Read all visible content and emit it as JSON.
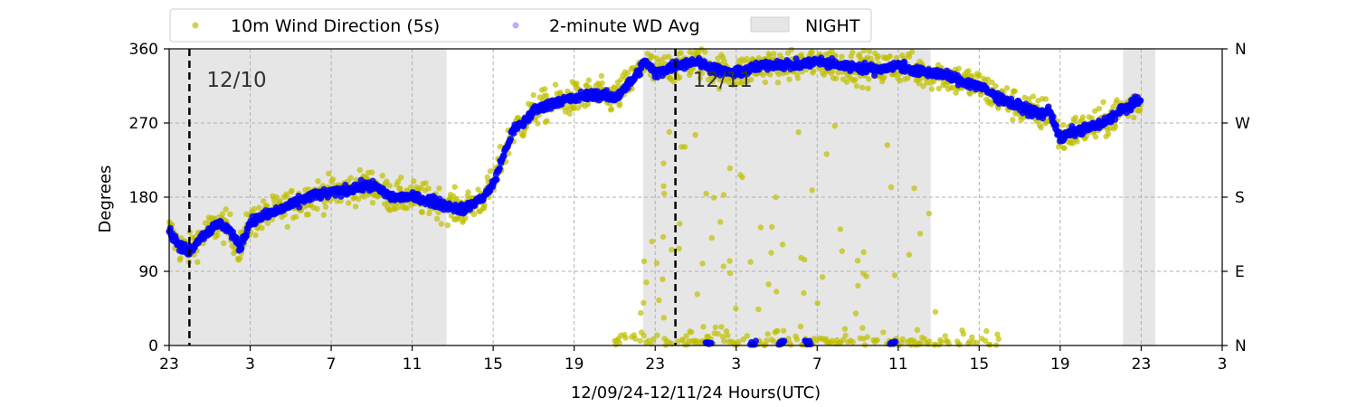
{
  "chart_data": {
    "type": "scatter",
    "xlabel": "12/09/24-12/11/24  Hours(UTC)",
    "ylabel": "Degrees",
    "ylim": [
      0,
      360
    ],
    "xlim_hours": [
      0,
      52
    ],
    "x_ticks": [
      {
        "h": 0,
        "label": "23"
      },
      {
        "h": 4,
        "label": "3"
      },
      {
        "h": 8,
        "label": "7"
      },
      {
        "h": 12,
        "label": "11"
      },
      {
        "h": 16,
        "label": "15"
      },
      {
        "h": 20,
        "label": "19"
      },
      {
        "h": 24,
        "label": "23"
      },
      {
        "h": 28,
        "label": "3"
      },
      {
        "h": 32,
        "label": "7"
      },
      {
        "h": 36,
        "label": "11"
      },
      {
        "h": 40,
        "label": "15"
      },
      {
        "h": 44,
        "label": "19"
      },
      {
        "h": 48,
        "label": "23"
      },
      {
        "h": 52,
        "label": "3"
      }
    ],
    "y_ticks": [
      0,
      90,
      180,
      270,
      360
    ],
    "y_ticks_right": [
      {
        "v": 0,
        "label": "N"
      },
      {
        "v": 90,
        "label": "E"
      },
      {
        "v": 180,
        "label": "S"
      },
      {
        "v": 270,
        "label": "W"
      },
      {
        "v": 360,
        "label": "N"
      }
    ],
    "grid": true,
    "legend_position": "top-left",
    "legend": [
      {
        "label": "10m Wind Direction (5s)",
        "kind": "marker",
        "color": "#bfbf00"
      },
      {
        "label": "2-minute WD Avg",
        "kind": "marker",
        "color": "#0000ff"
      },
      {
        "label": "NIGHT",
        "kind": "patch",
        "color": "#e6e6e6"
      }
    ],
    "night_periods": [
      {
        "start": 0,
        "end": 13.7
      },
      {
        "start": 23.4,
        "end": 37.6
      },
      {
        "start": 47.1,
        "end": 48.7
      }
    ],
    "day_markers": [
      {
        "h": 1,
        "label": "12/10"
      },
      {
        "h": 25,
        "label": "12/11"
      }
    ],
    "series": [
      {
        "name": "10m Wind Direction (5s)",
        "color": "#bfbf00",
        "spread": 14
      },
      {
        "name": "2-minute WD Avg",
        "color": "#0000ff",
        "x": [
          0,
          0.5,
          1,
          1.5,
          2,
          2.5,
          3,
          3.5,
          4,
          5,
          6,
          7,
          8,
          9,
          10,
          11,
          12,
          13,
          14,
          14.5,
          15,
          15.5,
          16,
          16.5,
          17,
          17.5,
          18,
          19,
          20,
          21,
          22,
          23,
          23.5,
          24,
          25,
          26,
          27,
          28,
          29,
          30,
          31,
          32,
          33,
          34,
          35,
          36,
          37,
          38,
          39,
          40,
          41,
          42,
          43,
          43.5,
          44,
          44.5,
          45,
          46,
          47,
          48
        ],
        "y": [
          140,
          120,
          115,
          130,
          140,
          148,
          140,
          118,
          150,
          160,
          170,
          182,
          185,
          190,
          195,
          180,
          180,
          175,
          168,
          165,
          172,
          180,
          195,
          230,
          262,
          270,
          285,
          295,
          300,
          305,
          300,
          325,
          345,
          330,
          340,
          345,
          335,
          330,
          338,
          342,
          340,
          345,
          340,
          338,
          335,
          340,
          332,
          330,
          322,
          315,
          300,
          290,
          280,
          285,
          250,
          258,
          262,
          268,
          285,
          298
        ]
      }
    ]
  }
}
